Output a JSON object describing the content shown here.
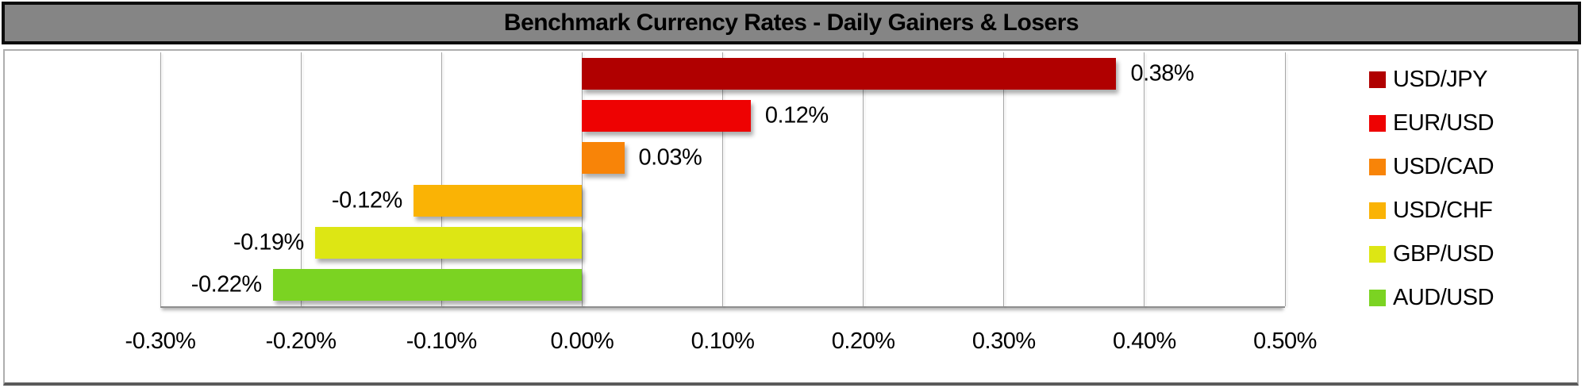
{
  "title": "Benchmark Currency Rates - Daily Gainers & Losers",
  "colors": {
    "title_bar_bg": "#858585",
    "title_text": "#000000",
    "panel_bg": "#ffffff",
    "gridline": "#a6a6a6"
  },
  "chart_data": {
    "type": "bar",
    "orientation": "horizontal",
    "title": "Benchmark Currency Rates - Daily Gainers & Losers",
    "categories": [
      "USD/JPY",
      "EUR/USD",
      "USD/CAD",
      "USD/CHF",
      "GBP/USD",
      "AUD/USD"
    ],
    "values": [
      0.38,
      0.12,
      0.03,
      -0.12,
      -0.19,
      -0.22
    ],
    "value_labels": [
      "0.38%",
      "0.12%",
      "0.03%",
      "-0.12%",
      "-0.19%",
      "-0.22%"
    ],
    "colors": [
      "#b00000",
      "#ee0202",
      "#f88408",
      "#fab305",
      "#dde614",
      "#7bd322"
    ],
    "xlim": [
      -0.3,
      0.5
    ],
    "x_tick_values": [
      -0.3,
      -0.2,
      -0.1,
      0.0,
      0.1,
      0.2,
      0.3,
      0.4,
      0.5
    ],
    "x_tick_labels": [
      "-0.30%",
      "-0.20%",
      "-0.10%",
      "0.00%",
      "0.10%",
      "0.20%",
      "0.30%",
      "0.40%",
      "0.50%"
    ],
    "grid": true,
    "xlabel": "",
    "ylabel": "",
    "legend_position": "right",
    "legend": [
      "USD/JPY",
      "EUR/USD",
      "USD/CAD",
      "USD/CHF",
      "GBP/USD",
      "AUD/USD"
    ]
  }
}
